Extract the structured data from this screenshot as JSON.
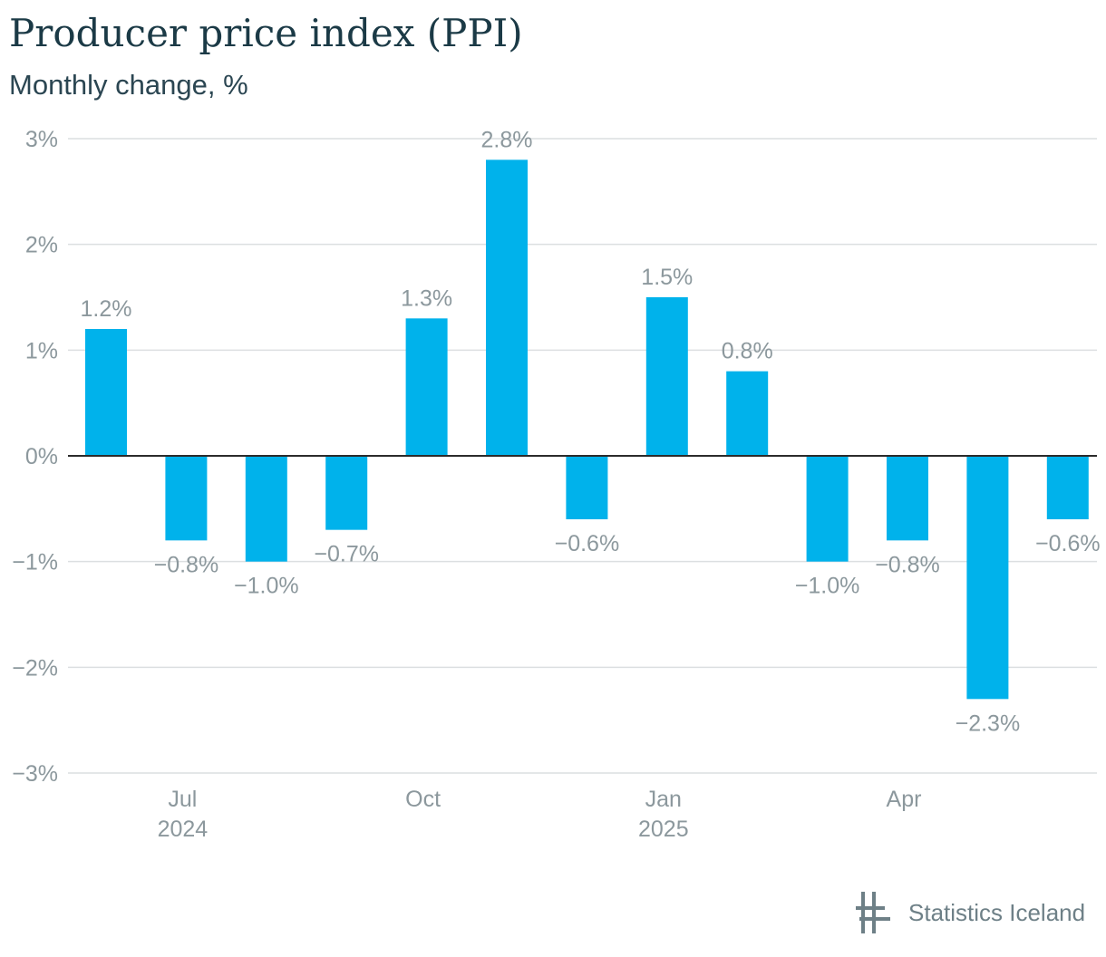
{
  "title": "Producer price index (PPI)",
  "subtitle": "Monthly change, %",
  "logo": {
    "text": "Statistics Iceland",
    "icon": "statistics-iceland-logo-icon"
  },
  "colors": {
    "bar": "#00b2eb",
    "grid": "#dcdfe1",
    "zero_line": "#2b2b2b",
    "axis_text": "#8c989d",
    "label_text": "#8c989d",
    "title_text": "#1b3a46"
  },
  "chart_data": {
    "type": "bar",
    "categories": [
      "2024-06",
      "2024-07",
      "2024-08",
      "2024-09",
      "2024-10",
      "2024-11",
      "2024-12",
      "2025-01",
      "2025-02",
      "2025-03",
      "2025-04",
      "2025-05",
      "2025-06"
    ],
    "values": [
      1.2,
      -0.8,
      -1.0,
      -0.7,
      1.3,
      2.8,
      -0.6,
      1.5,
      0.8,
      -1.0,
      -0.8,
      -2.3,
      -0.6
    ],
    "data_labels": [
      "1.2%",
      "−0.8%",
      "−1.0%",
      "−0.7%",
      "1.3%",
      "2.8%",
      "−0.6%",
      "1.5%",
      "0.8%",
      "−1.0%",
      "−0.8%",
      "−2.3%",
      "−0.6%"
    ],
    "x_tick_labels": [
      {
        "category": "2024-07",
        "month": "Jul",
        "year": "2024"
      },
      {
        "category": "2024-10",
        "month": "Oct",
        "year": ""
      },
      {
        "category": "2025-01",
        "month": "Jan",
        "year": "2025"
      },
      {
        "category": "2025-04",
        "month": "Apr",
        "year": ""
      }
    ],
    "y_ticks": [
      3,
      2,
      1,
      0,
      -1,
      -2,
      -3
    ],
    "y_tick_labels": [
      "3%",
      "2%",
      "1%",
      "0%",
      "−1%",
      "−2%",
      "−3%"
    ],
    "ylim": [
      -3,
      3
    ],
    "grid": true,
    "legend": false,
    "xlabel": "",
    "ylabel": ""
  }
}
